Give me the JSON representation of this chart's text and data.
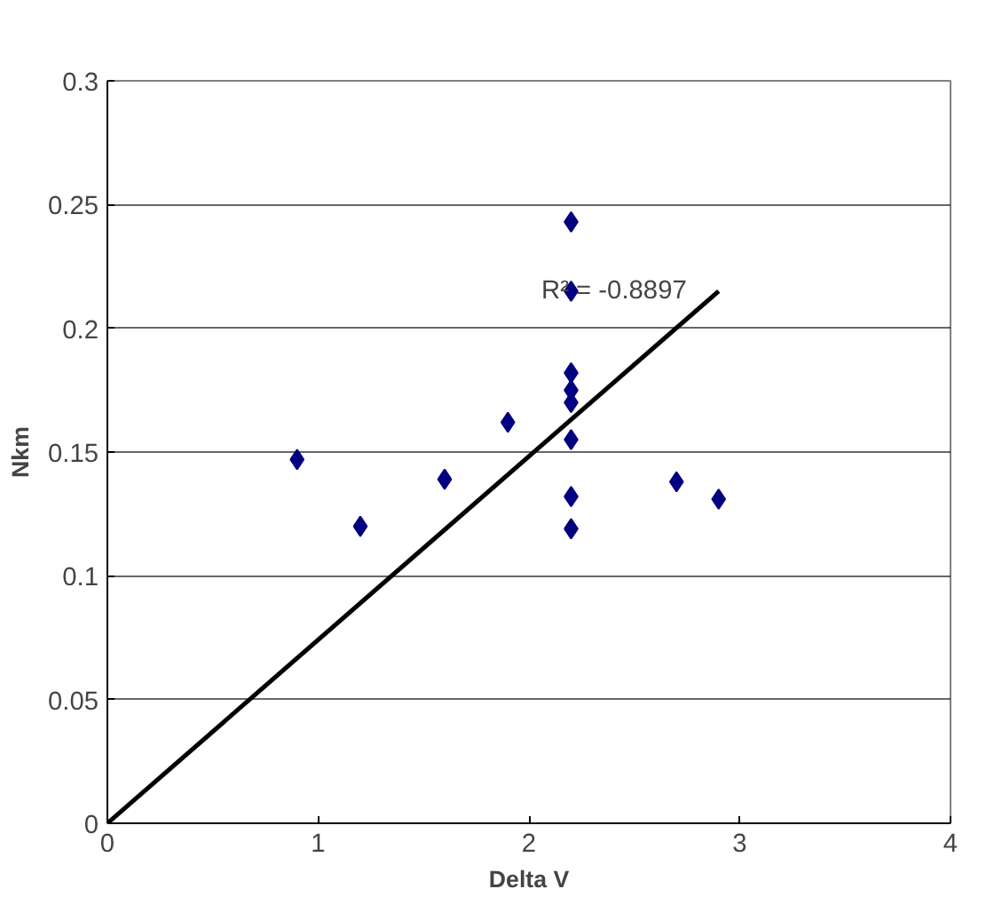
{
  "chart_data": {
    "type": "scatter",
    "xlabel": "Delta V",
    "ylabel": "Nkm",
    "xlim": [
      0,
      4
    ],
    "ylim": [
      0,
      0.3
    ],
    "xticks": [
      0,
      1,
      2,
      3,
      4
    ],
    "yticks": [
      0,
      0.05,
      0.1,
      0.15,
      0.2,
      0.25,
      0.3
    ],
    "grid": "y",
    "marker": "diamond",
    "series": [
      {
        "color": "#000080",
        "x": [
          0.9,
          1.2,
          1.6,
          1.9,
          2.2,
          2.2,
          2.2,
          2.2,
          2.2,
          2.2,
          2.2,
          2.2,
          2.7,
          2.9
        ],
        "values": [
          0.147,
          0.12,
          0.139,
          0.162,
          0.243,
          0.215,
          0.182,
          0.175,
          0.17,
          0.155,
          0.132,
          0.119,
          0.138,
          0.131
        ]
      },
      {
        "type": "line",
        "color": "#000000",
        "x": [
          0,
          2.9
        ],
        "values": [
          0,
          0.215
        ],
        "marker": "none"
      }
    ],
    "annotations": [
      "R² = -0.8897"
    ]
  }
}
